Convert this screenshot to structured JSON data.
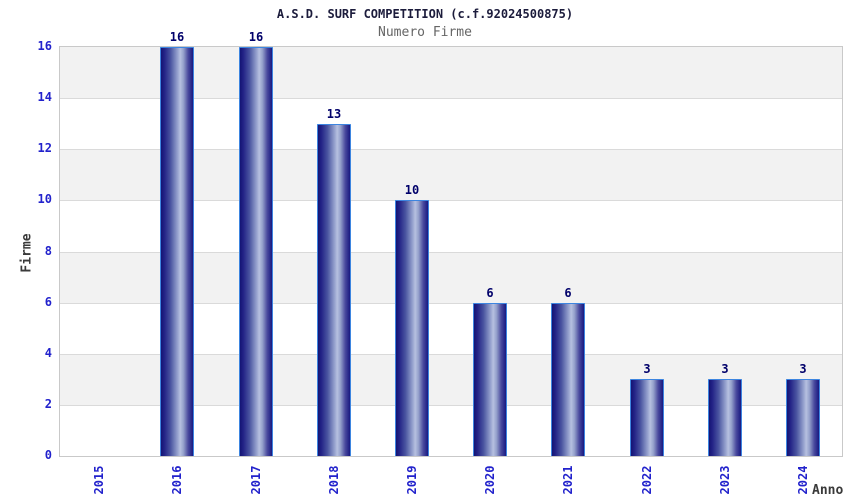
{
  "chart_data": {
    "type": "bar",
    "title": "A.S.D. SURF COMPETITION (c.f.92024500875)",
    "subtitle": "Numero Firme",
    "xlabel": "Anno",
    "ylabel": "Firme",
    "categories": [
      "2015",
      "2016",
      "2017",
      "2018",
      "2019",
      "2020",
      "2021",
      "2022",
      "2023",
      "2024"
    ],
    "values": [
      0,
      16,
      16,
      13,
      10,
      6,
      6,
      3,
      3,
      3
    ],
    "bar_value_labels": [
      "",
      "16",
      "16",
      "13",
      "10",
      "6",
      "6",
      "3",
      "3",
      "3"
    ],
    "ylim": [
      0,
      16
    ],
    "ytick_step": 2,
    "yticks": [
      0,
      2,
      4,
      6,
      8,
      10,
      12,
      14,
      16
    ],
    "grid": "horizontal alternating bands",
    "legend": "none",
    "layout_hints": {
      "bars_hidden_when_zero": true,
      "x_tick_rotation_deg": 90,
      "band_order_from_bottom": [
        "white",
        "gray"
      ]
    },
    "colors": {
      "title": "#1c1c3c",
      "subtitle": "#666666",
      "axis_title": "#3a3a3a",
      "tick_label": "#2222cc",
      "value_label": "#00006a",
      "band_gray": "#f2f2f2",
      "gridline": "#dadada",
      "plot_border": "#c9c9c9",
      "bar_border": "#3d85e0",
      "bar_gradient_dark": "#141474",
      "bar_gradient_light": "#b6c0e0",
      "background": "#ffffff"
    }
  }
}
